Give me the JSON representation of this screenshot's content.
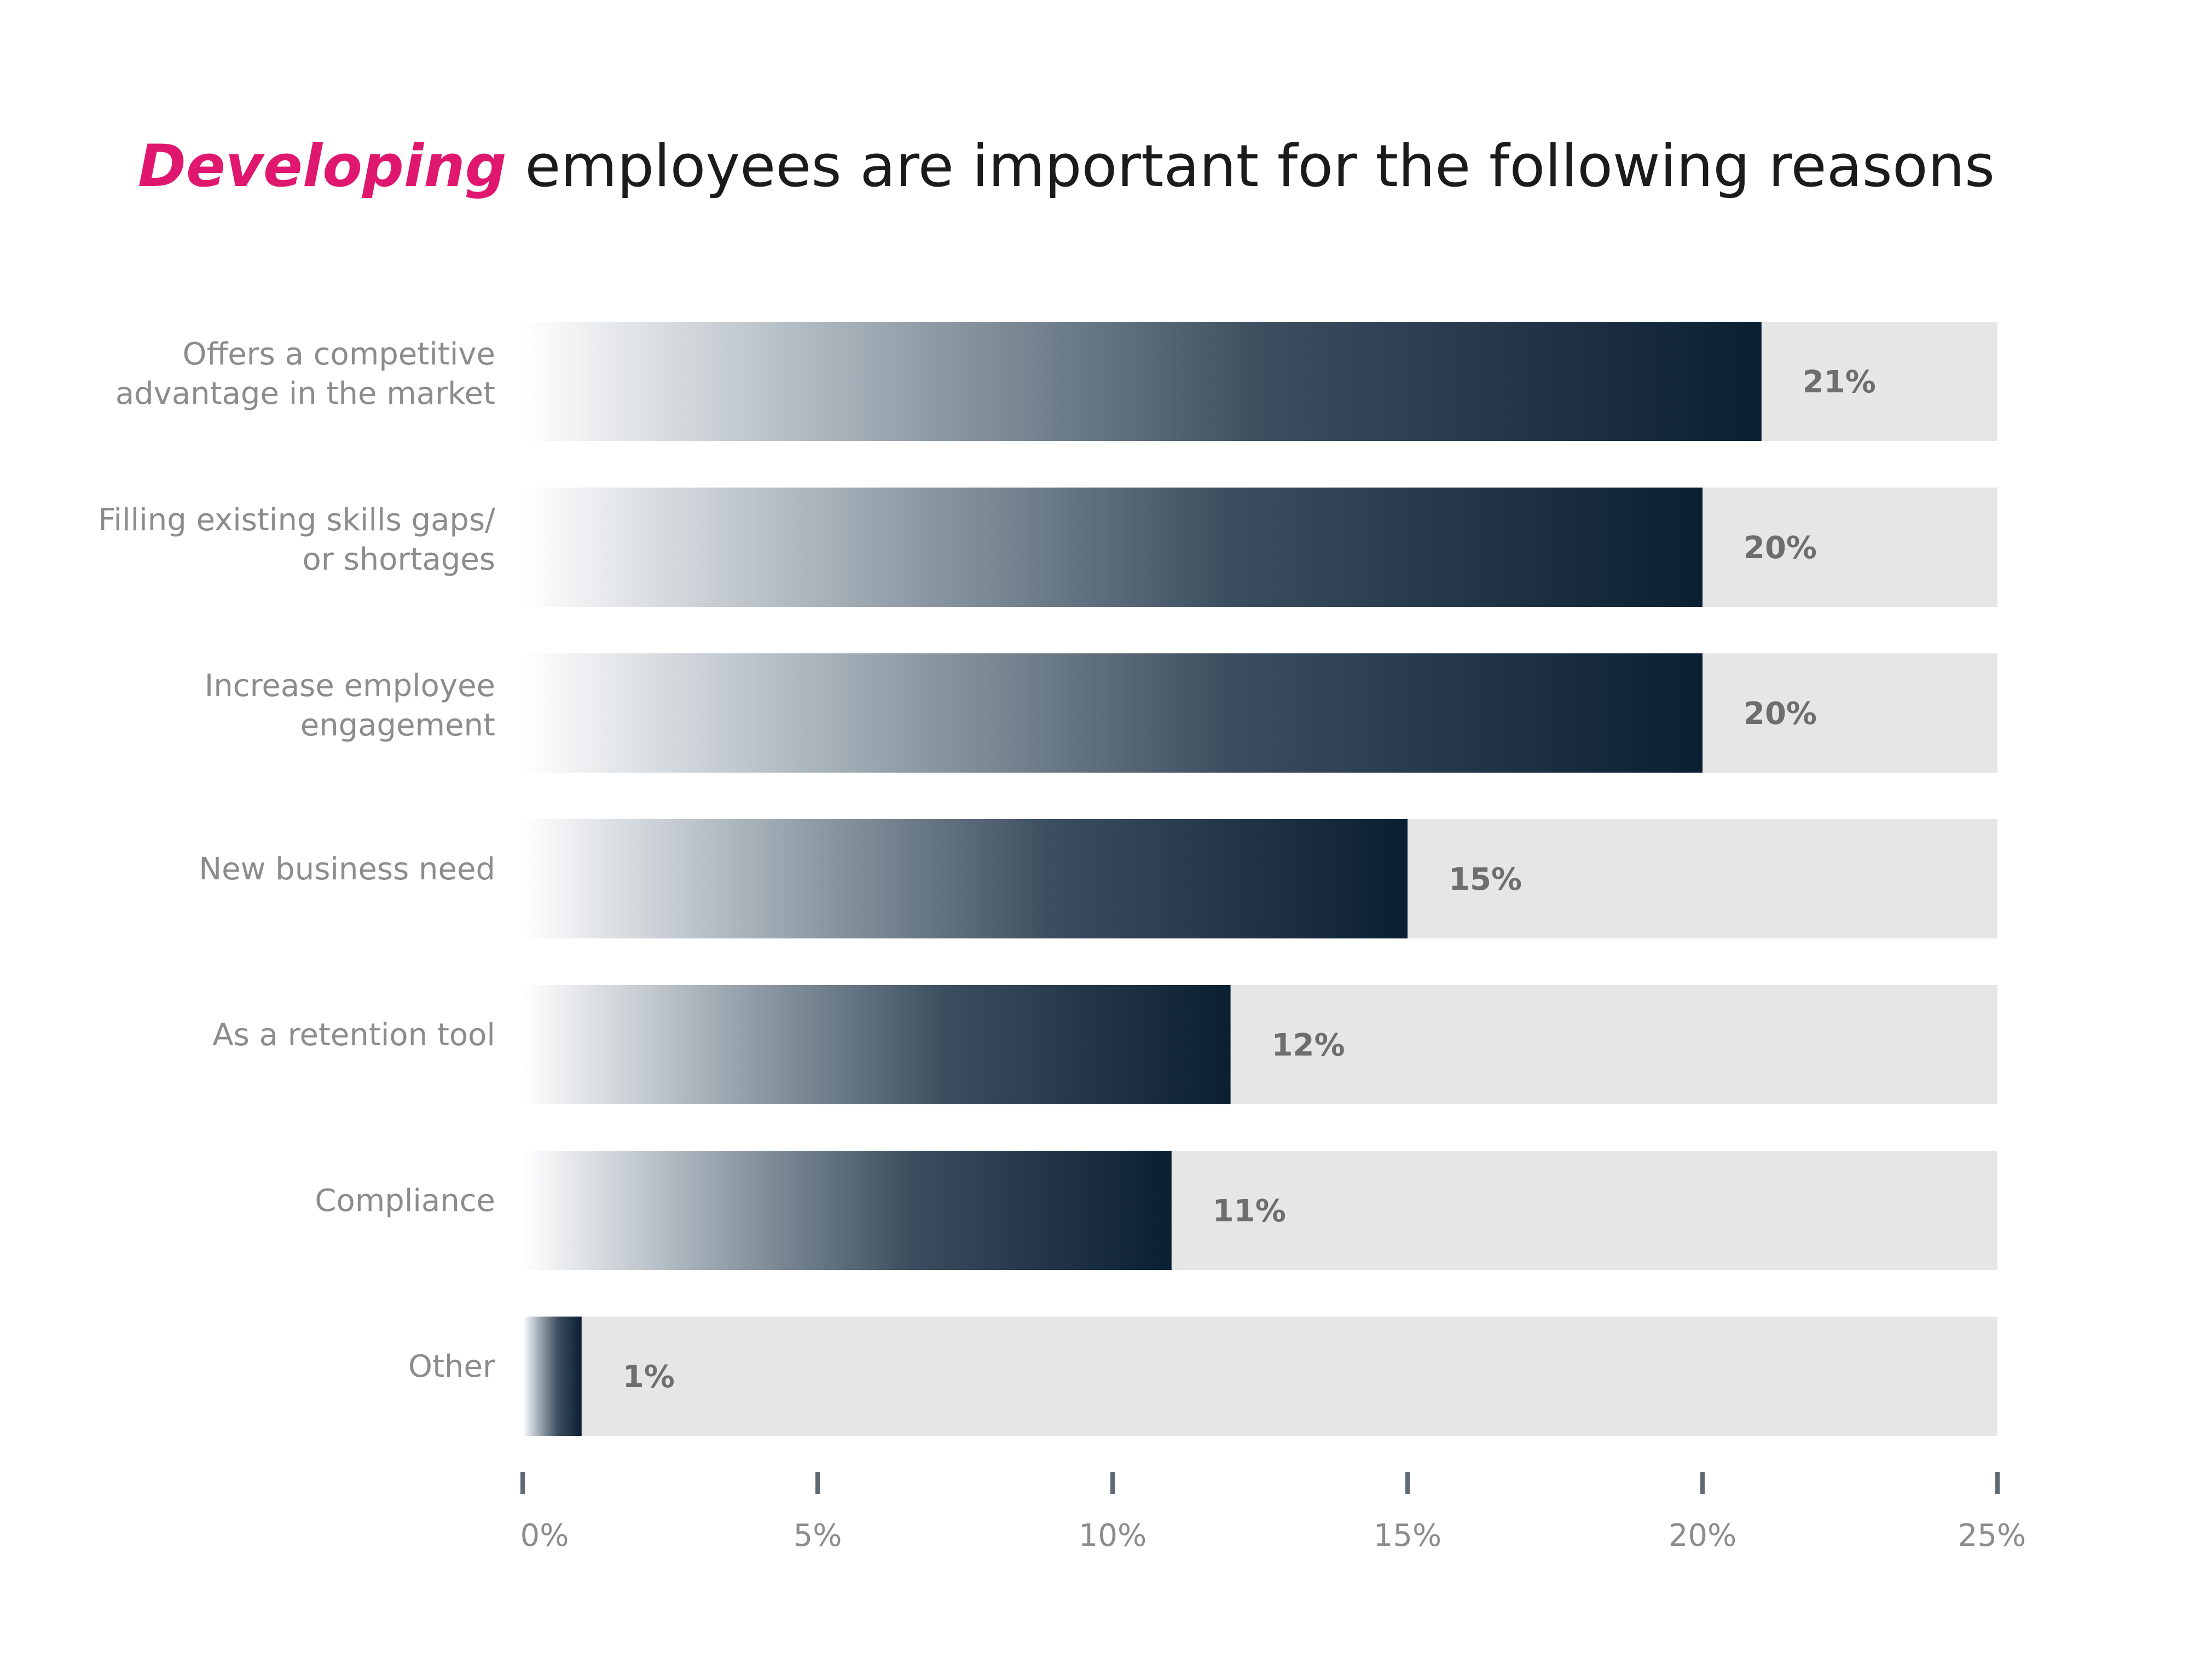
{
  "colors": {
    "title_accent": "#e0176f",
    "title_text": "#1b1b1b",
    "bar_dark": "#0b1f33",
    "bar_light": "#ffffff",
    "track": "#e6e6e6",
    "category_text": "#8c8c8c",
    "value_text": "#6e6e6e",
    "tick_mark": "#5f6a74",
    "tick_text": "#8c8c8c"
  },
  "chart_data": {
    "type": "bar",
    "orientation": "horizontal",
    "title": {
      "highlight": "Developing",
      "rest": " employees are important for the following reasons"
    },
    "categories": [
      [
        "Offers a competitive",
        "advantage in the market"
      ],
      [
        "Filling existing skills gaps/",
        "or shortages"
      ],
      [
        "Increase employee",
        "engagement"
      ],
      [
        "New business need"
      ],
      [
        "As a retention tool"
      ],
      [
        "Compliance"
      ],
      [
        "Other"
      ]
    ],
    "values": [
      21,
      20,
      20,
      15,
      12,
      11,
      1
    ],
    "value_labels": [
      "21%",
      "20%",
      "20%",
      "15%",
      "12%",
      "11%",
      "1%"
    ],
    "xlim": [
      0,
      25
    ],
    "x_ticks": [
      0,
      5,
      10,
      15,
      20,
      25
    ],
    "x_tick_labels": [
      "0%",
      "5%",
      "10%",
      "15%",
      "20%",
      "25%"
    ],
    "grid": false,
    "legend": "none"
  }
}
